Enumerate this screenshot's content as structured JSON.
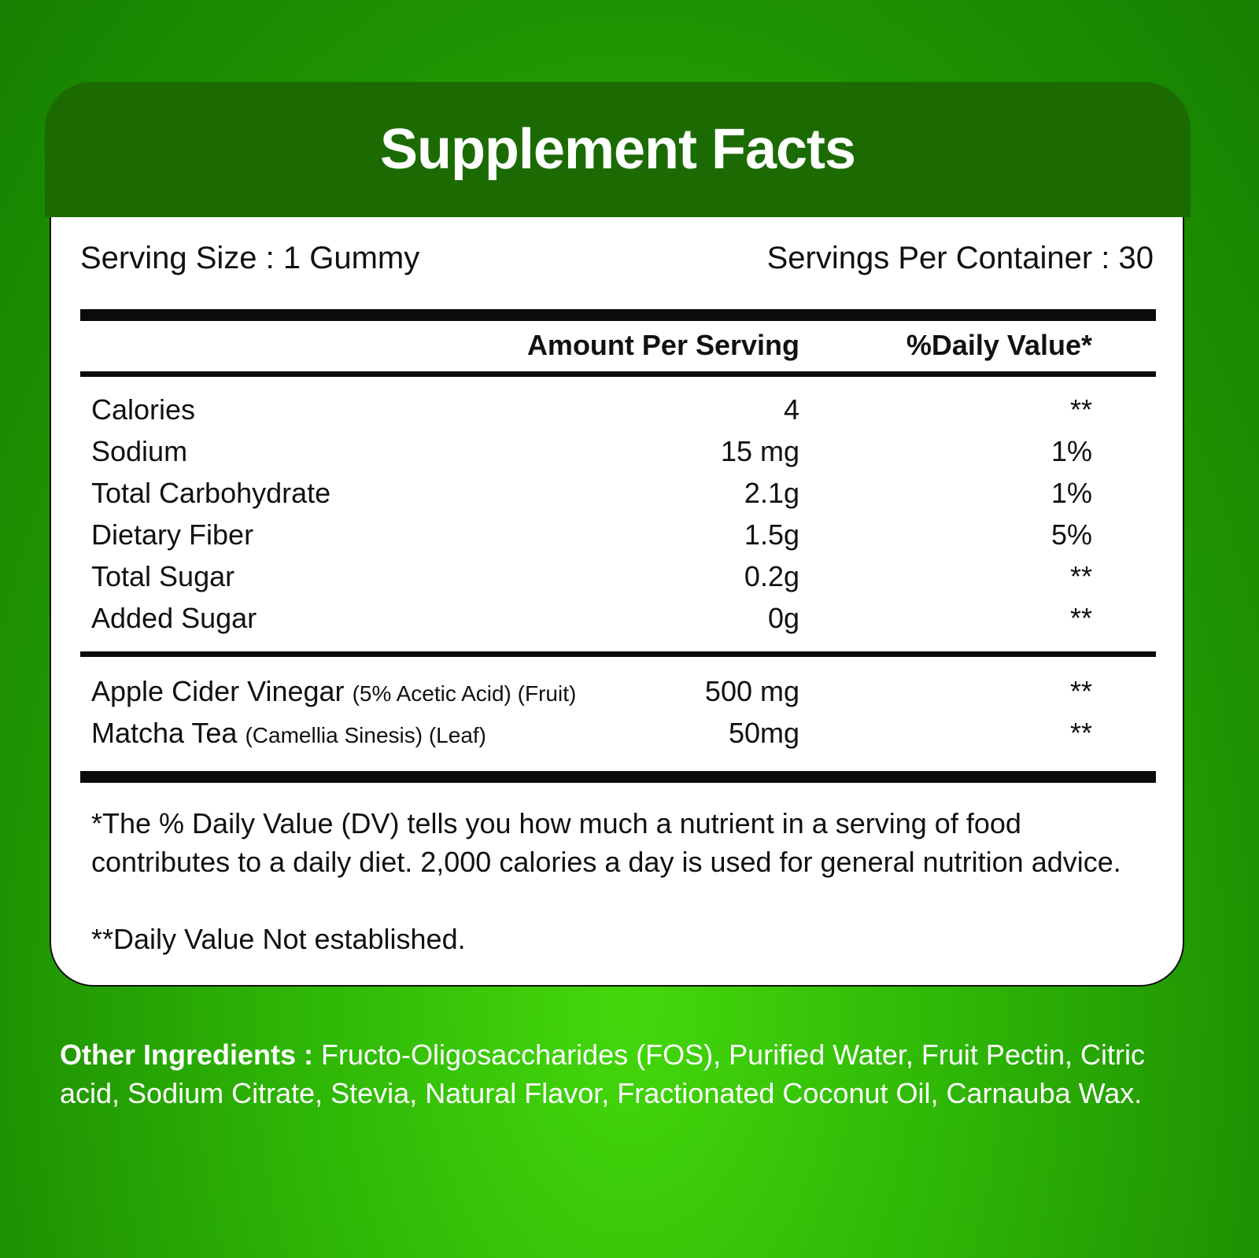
{
  "title": "Supplement Facts",
  "serving_size": "Serving Size : 1 Gummy",
  "servings_per_container": "Servings Per Container : 30",
  "headers": {
    "amount": "Amount Per Serving",
    "dv": "%Daily Value*"
  },
  "nutrients": [
    {
      "name": "Calories",
      "amount": "4",
      "dv": "**"
    },
    {
      "name": "Sodium",
      "amount": "15 mg",
      "dv": "1%"
    },
    {
      "name": "Total Carbohydrate",
      "amount": "2.1g",
      "dv": "1%"
    },
    {
      "name": "Dietary Fiber",
      "amount": "1.5g",
      "dv": "5%"
    },
    {
      "name": "Total Sugar",
      "amount": "0.2g",
      "dv": "**"
    },
    {
      "name": "Added Sugar",
      "amount": "0g",
      "dv": "**"
    }
  ],
  "ingredients": [
    {
      "name": "Apple Cider Vinegar",
      "detail": "(5% Acetic Acid) (Fruit)",
      "amount": "500 mg",
      "dv": "**"
    },
    {
      "name": "Matcha Tea",
      "detail": "(Camellia Sinesis) (Leaf)",
      "amount": "50mg",
      "dv": "**"
    }
  ],
  "footnote1": "*The % Daily Value (DV) tells you how much a nutrient in a serving of food contributes to a daily diet. 2,000 calories a day is used for general nutrition advice.",
  "footnote2": "**Daily Value Not established.",
  "other_ingredients": {
    "label": "Other Ingredients :",
    "text": " Fructo-Oligosaccharides (FOS), Purified Water, Fruit Pectin, Citric acid, Sodium Citrate, Stevia, Natural Flavor, Fractionated Coconut Oil, Carnauba Wax."
  },
  "colors": {
    "header": "#1b6b02",
    "background": "#2fb806"
  }
}
